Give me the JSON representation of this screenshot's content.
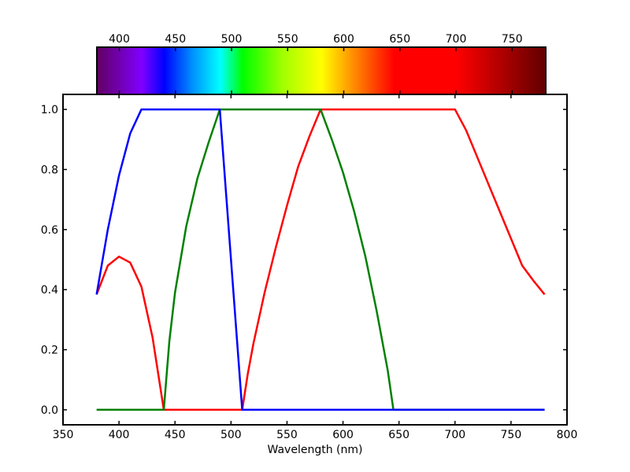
{
  "chart_data": [
    {
      "type": "line",
      "title": "",
      "xlabel": "Wavelength (nm)",
      "ylabel": "",
      "xlim": [
        350,
        800
      ],
      "ylim": [
        -0.05,
        1.05
      ],
      "x_ticks": [
        "350",
        "400",
        "450",
        "500",
        "550",
        "600",
        "650",
        "700",
        "750",
        "800"
      ],
      "y_ticks": [
        "0.0",
        "0.2",
        "0.4",
        "0.6",
        "0.8",
        "1.0"
      ],
      "grid": false,
      "legend": "none",
      "x": [
        380,
        390,
        400,
        410,
        420,
        430,
        435,
        440,
        445,
        450,
        460,
        470,
        480,
        490,
        495,
        500,
        505,
        510,
        515,
        520,
        530,
        540,
        550,
        560,
        570,
        580,
        590,
        600,
        610,
        620,
        630,
        640,
        645,
        650,
        660,
        670,
        680,
        690,
        700,
        710,
        720,
        730,
        740,
        750,
        760,
        770,
        780
      ],
      "series": [
        {
          "color": "#ff0000",
          "values": [
            0.384,
            0.48,
            0.51,
            0.49,
            0.41,
            0.24,
            0.12,
            0.0,
            0.0,
            0.0,
            0.0,
            0.0,
            0.0,
            0.0,
            0.0,
            0.0,
            0.0,
            0.0,
            0.12,
            0.22,
            0.39,
            0.54,
            0.68,
            0.81,
            0.91,
            1.0,
            1.0,
            1.0,
            1.0,
            1.0,
            1.0,
            1.0,
            1.0,
            1.0,
            1.0,
            1.0,
            1.0,
            1.0,
            1.0,
            0.93,
            0.84,
            0.75,
            0.66,
            0.57,
            0.48,
            0.43,
            0.384
          ]
        },
        {
          "color": "#008000",
          "values": [
            0.0,
            0.0,
            0.0,
            0.0,
            0.0,
            0.0,
            0.0,
            0.0,
            0.23,
            0.39,
            0.61,
            0.77,
            0.89,
            1.0,
            1.0,
            1.0,
            1.0,
            1.0,
            1.0,
            1.0,
            1.0,
            1.0,
            1.0,
            1.0,
            1.0,
            1.0,
            0.9,
            0.79,
            0.66,
            0.51,
            0.33,
            0.13,
            0.0,
            0.0,
            0.0,
            0.0,
            0.0,
            0.0,
            0.0,
            0.0,
            0.0,
            0.0,
            0.0,
            0.0,
            0.0,
            0.0,
            0.0
          ]
        },
        {
          "color": "#0000ff",
          "values": [
            0.384,
            0.6,
            0.78,
            0.92,
            1.0,
            1.0,
            1.0,
            1.0,
            1.0,
            1.0,
            1.0,
            1.0,
            1.0,
            1.0,
            0.75,
            0.5,
            0.25,
            0.0,
            0.0,
            0.0,
            0.0,
            0.0,
            0.0,
            0.0,
            0.0,
            0.0,
            0.0,
            0.0,
            0.0,
            0.0,
            0.0,
            0.0,
            0.0,
            0.0,
            0.0,
            0.0,
            0.0,
            0.0,
            0.0,
            0.0,
            0.0,
            0.0,
            0.0,
            0.0,
            0.0,
            0.0,
            0.0
          ]
        }
      ]
    },
    {
      "type": "heatmap",
      "xlim": [
        380,
        780
      ],
      "x_ticks": [
        "400",
        "450",
        "500",
        "550",
        "600",
        "650",
        "700",
        "750"
      ],
      "stops": [
        {
          "wavelength": 380,
          "color": "#610061"
        },
        {
          "wavelength": 420,
          "color": "#8000ff"
        },
        {
          "wavelength": 440,
          "color": "#0000ff"
        },
        {
          "wavelength": 465,
          "color": "#0090ff"
        },
        {
          "wavelength": 490,
          "color": "#00ffff"
        },
        {
          "wavelength": 510,
          "color": "#00ff00"
        },
        {
          "wavelength": 545,
          "color": "#9fff00"
        },
        {
          "wavelength": 580,
          "color": "#ffff00"
        },
        {
          "wavelength": 612,
          "color": "#ff8000"
        },
        {
          "wavelength": 645,
          "color": "#ff0000"
        },
        {
          "wavelength": 700,
          "color": "#ff0000"
        },
        {
          "wavelength": 780,
          "color": "#610000"
        }
      ]
    }
  ]
}
